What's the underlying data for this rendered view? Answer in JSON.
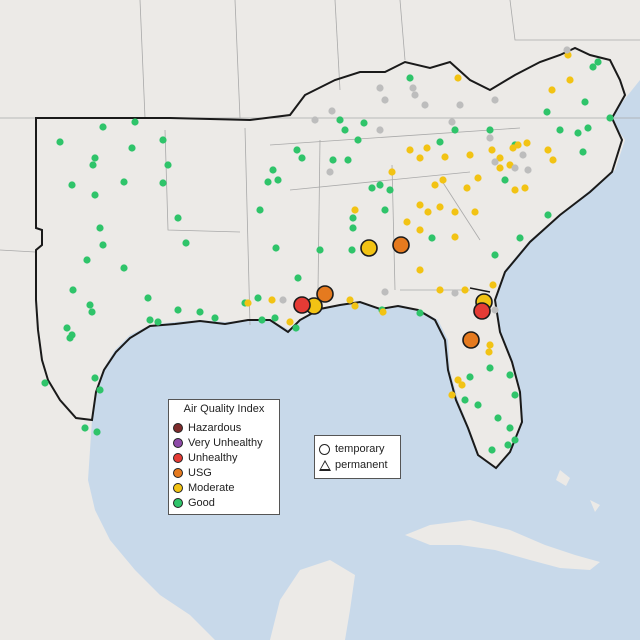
{
  "legend": {
    "title": "Air Quality Index",
    "categories": [
      {
        "label": "Hazardous",
        "color": "#7e2b2b"
      },
      {
        "label": "Very Unhealthy",
        "color": "#8e4aa8"
      },
      {
        "label": "Unhealthy",
        "color": "#e53b35"
      },
      {
        "label": "USG",
        "color": "#e57a1f"
      },
      {
        "label": "Moderate",
        "color": "#f2c314"
      },
      {
        "label": "Good",
        "color": "#2fc46a"
      }
    ]
  },
  "type_legend": {
    "temporary": "temporary",
    "permanent": "permanent"
  },
  "colors": {
    "land": "#eceae7",
    "water": "#c8d9ea",
    "border": "#1a1a1a",
    "nodata": "#bdbdbd"
  }
}
